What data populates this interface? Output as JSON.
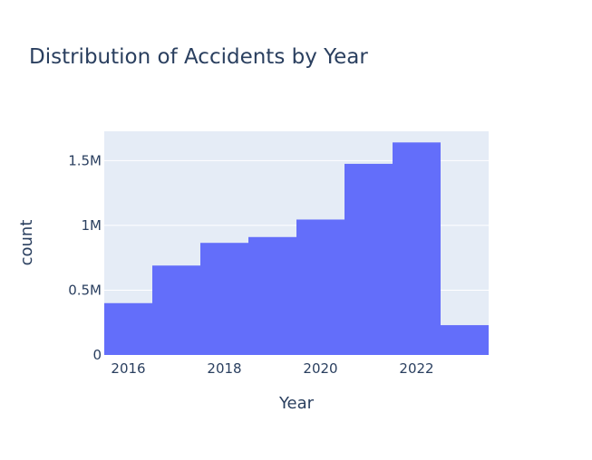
{
  "chart_data": {
    "type": "bar",
    "title": "Distribution of Accidents by Year",
    "xlabel": "Year",
    "ylabel": "count",
    "bins": [
      {
        "start": 2015.5,
        "end": 2016.5,
        "value": 400000
      },
      {
        "start": 2016.5,
        "end": 2017.5,
        "value": 690000
      },
      {
        "start": 2017.5,
        "end": 2018.5,
        "value": 865000
      },
      {
        "start": 2018.5,
        "end": 2019.5,
        "value": 910000
      },
      {
        "start": 2019.5,
        "end": 2020.5,
        "value": 1045000
      },
      {
        "start": 2020.5,
        "end": 2021.5,
        "value": 1475000
      },
      {
        "start": 2021.5,
        "end": 2022.5,
        "value": 1640000
      },
      {
        "start": 2022.5,
        "end": 2023.5,
        "value": 230000
      }
    ],
    "xlim": [
      2015.5,
      2023.5
    ],
    "ylim": [
      0,
      1726000
    ],
    "xticks": [
      {
        "value": 2016,
        "label": "2016"
      },
      {
        "value": 2018,
        "label": "2018"
      },
      {
        "value": 2020,
        "label": "2020"
      },
      {
        "value": 2022,
        "label": "2022"
      }
    ],
    "yticks": [
      {
        "value": 0,
        "label": "0"
      },
      {
        "value": 500000,
        "label": "0.5M"
      },
      {
        "value": 1000000,
        "label": "1M"
      },
      {
        "value": 1500000,
        "label": "1.5M"
      }
    ],
    "grid": true,
    "colors": {
      "bar": "#636efa",
      "plot_background": "#e5ecf6",
      "grid": "#ffffff",
      "text": "#2a3f5f"
    }
  }
}
